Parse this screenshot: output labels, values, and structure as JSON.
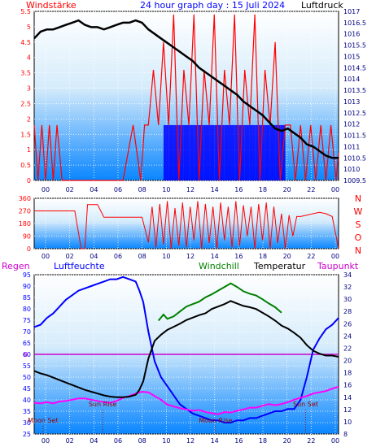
{
  "header": {
    "left_label": "Windstärke",
    "title": "24 hour graph day : 15 Juli 2024",
    "right_label": "Luftdruck"
  },
  "colors": {
    "wind_gust": "#ff0000",
    "wind_avg": "#0000ff",
    "pressure": "#000000",
    "direction": "#ff0000",
    "humidity": "#0000ff",
    "temperature": "#000000",
    "windchill": "#008000",
    "dewpoint": "#ff00ff",
    "rain": "#ff0000",
    "zero_line": "#cc00cc",
    "plot_top": "#ffffff",
    "plot_bottom": "#0a86ff"
  },
  "chart_data": [
    {
      "id": "wind-pressure",
      "type": "line",
      "x_ticks": [
        "00",
        "02",
        "04",
        "06",
        "08",
        "10",
        "12",
        "14",
        "16",
        "18",
        "20",
        "22",
        "00"
      ],
      "y_left_ticks": [
        "0",
        "0.5",
        "1",
        "1.5",
        "2",
        "2.5",
        "3",
        "3.5",
        "4",
        "4.5",
        "5",
        "5.5"
      ],
      "y_left_label": "Windstärke",
      "ylim_left": [
        0,
        5.5
      ],
      "y_right_ticks": [
        "1009.5",
        "1010",
        "1010.5",
        "1011",
        "1011.5",
        "1012",
        "1012.5",
        "1013",
        "1013.5",
        "1014",
        "1014.5",
        "1015",
        "1015.5",
        "1016",
        "1016.5",
        "1017"
      ],
      "y_right_label": "Luftdruck",
      "ylim_right": [
        1009.5,
        1017
      ],
      "series": [
        {
          "name": "Luftdruck",
          "axis": "right",
          "x": [
            0,
            0.5,
            1,
            1.5,
            2,
            2.5,
            3,
            3.5,
            4,
            4.5,
            5,
            5.5,
            6,
            6.5,
            7,
            7.5,
            8,
            8.5,
            9,
            9.5,
            10,
            10.5,
            11,
            11.5,
            12,
            12.5,
            13,
            13.5,
            14,
            14.5,
            15,
            15.5,
            16,
            16.5,
            17,
            17.5,
            18,
            18.5,
            19,
            19.5,
            20,
            20.5,
            21,
            21.5,
            22,
            22.5,
            23,
            23.5,
            24
          ],
          "y": [
            1015.8,
            1016.1,
            1016.2,
            1016.2,
            1016.3,
            1016.4,
            1016.5,
            1016.6,
            1016.4,
            1016.3,
            1016.3,
            1016.2,
            1016.3,
            1016.4,
            1016.5,
            1016.5,
            1016.6,
            1016.5,
            1016.2,
            1016.0,
            1015.8,
            1015.6,
            1015.4,
            1015.2,
            1015.0,
            1014.8,
            1014.5,
            1014.3,
            1014.1,
            1013.9,
            1013.7,
            1013.5,
            1013.3,
            1013.0,
            1012.8,
            1012.6,
            1012.4,
            1012.1,
            1011.8,
            1011.7,
            1011.8,
            1011.6,
            1011.4,
            1011.1,
            1011.0,
            1010.8,
            1010.6,
            1010.5,
            1010.5
          ]
        },
        {
          "name": "Windstärke",
          "axis": "left",
          "x": [
            0,
            0.3,
            0.6,
            0.9,
            1.2,
            1.5,
            1.8,
            2.2,
            4.2,
            4.8,
            5.5,
            6.2,
            7.0,
            7.8,
            8.4,
            8.7,
            9.0,
            9.4,
            9.8,
            10.2,
            10.6,
            11.0,
            11.4,
            11.8,
            12.2,
            12.6,
            13.0,
            13.4,
            13.8,
            14.2,
            14.6,
            15.0,
            15.4,
            15.8,
            16.2,
            16.6,
            17.0,
            17.4,
            17.8,
            18.2,
            18.6,
            19.0,
            19.4,
            19.8,
            20.2,
            20.6,
            21.0,
            21.4,
            21.8,
            22.2,
            22.6,
            23.0,
            23.4,
            23.8,
            24
          ],
          "y": [
            1.8,
            0,
            1.8,
            0,
            1.8,
            0,
            1.8,
            0,
            0,
            0,
            0,
            0,
            0,
            1.8,
            0,
            1.8,
            1.8,
            3.6,
            1.8,
            4.5,
            1.8,
            5.4,
            0,
            3.6,
            1.8,
            5.4,
            0,
            3.6,
            1.8,
            5.4,
            0,
            3.6,
            1.8,
            5.4,
            0,
            3.6,
            1.8,
            5.4,
            0,
            3.6,
            1.8,
            4.5,
            0,
            1.8,
            1.8,
            0,
            1.8,
            0,
            1.8,
            0,
            1.8,
            0,
            1.8,
            0,
            0.9
          ]
        }
      ]
    },
    {
      "id": "wind-direction",
      "type": "line",
      "x_ticks": [
        "00",
        "02",
        "04",
        "06",
        "08",
        "10",
        "12",
        "14",
        "16",
        "18",
        "20",
        "22",
        "00"
      ],
      "y_left_ticks": [
        "0",
        "90",
        "180",
        "270",
        "360"
      ],
      "ylim": [
        0,
        360
      ],
      "compass_labels": [
        "N",
        "W",
        "S",
        "O",
        "N"
      ],
      "series": [
        {
          "name": "Windrichtung",
          "x": [
            0,
            1.0,
            2.0,
            2.5,
            3.0,
            3.2,
            3.7,
            4.0,
            4.2,
            5.0,
            5.5,
            5.8,
            6.0,
            7.0,
            8.0,
            8.5,
            9.0,
            9.3,
            9.6,
            9.9,
            10.2,
            10.5,
            10.8,
            11.1,
            11.4,
            11.7,
            12.0,
            12.3,
            12.6,
            12.9,
            13.2,
            13.5,
            13.8,
            14.1,
            14.4,
            14.7,
            15.0,
            15.3,
            15.6,
            15.9,
            16.2,
            16.5,
            16.8,
            17.1,
            17.4,
            17.7,
            18.0,
            18.3,
            18.6,
            18.9,
            19.2,
            19.5,
            19.8,
            20.1,
            20.4,
            20.7,
            21.0,
            21.5,
            22.0,
            22.5,
            23.0,
            23.5,
            24
          ],
          "y": [
            270,
            270,
            270,
            270,
            270,
            270,
            0,
            0,
            315,
            315,
            225,
            225,
            225,
            225,
            225,
            225,
            45,
            300,
            10,
            320,
            30,
            340,
            0,
            290,
            20,
            330,
            10,
            300,
            60,
            340,
            0,
            320,
            40,
            300,
            0,
            330,
            60,
            300,
            10,
            340,
            20,
            310,
            90,
            300,
            0,
            320,
            60,
            330,
            0,
            300,
            40,
            250,
            0,
            240,
            90,
            230,
            230,
            240,
            250,
            260,
            250,
            230,
            0
          ]
        }
      ]
    },
    {
      "id": "temperature-humidity",
      "type": "line",
      "legend": [
        "Regen",
        "Luftfeuchte",
        "Windchill",
        "Temperatur",
        "Taupunkt"
      ],
      "x_ticks": [
        "00",
        "02",
        "04",
        "06",
        "08",
        "10",
        "12",
        "14",
        "16",
        "18",
        "20",
        "22",
        "00"
      ],
      "y_left_ticks": [
        "25",
        "30",
        "35",
        "40",
        "45",
        "50",
        "55",
        "60",
        "65",
        "70",
        "75",
        "80",
        "85",
        "90",
        "95"
      ],
      "ylim_left": [
        25,
        95
      ],
      "y_right_ticks": [
        "8",
        "10",
        "12",
        "14",
        "16",
        "18",
        "20",
        "22",
        "24",
        "26",
        "28",
        "30",
        "32",
        "34"
      ],
      "ylim_right": [
        8,
        34
      ],
      "rain_axis_label": "0",
      "annotations": [
        {
          "text": "Moon Set",
          "x": 0.7
        },
        {
          "text": "Sun Rise",
          "x": 5.4
        },
        {
          "text": "Moon Rise",
          "x": 14.3
        },
        {
          "text": "Sun Set",
          "x": 21.4
        }
      ],
      "series": [
        {
          "name": "Luftfeuchte",
          "axis": "left",
          "x": [
            0,
            0.5,
            1,
            1.5,
            2,
            2.5,
            3,
            3.5,
            4,
            4.5,
            5,
            5.5,
            6,
            6.5,
            7,
            7.5,
            8,
            8.3,
            8.6,
            9,
            9.5,
            10,
            10.5,
            11,
            11.5,
            12,
            12.5,
            13,
            13.5,
            14,
            14.5,
            15,
            15.5,
            16,
            16.5,
            17,
            17.5,
            18,
            18.5,
            19,
            19.5,
            20,
            20.5,
            21,
            21.5,
            22,
            22.5,
            23,
            23.5,
            24
          ],
          "y": [
            72,
            73,
            76,
            78,
            81,
            84,
            86,
            88,
            89,
            90,
            91,
            92,
            93,
            93,
            94,
            93,
            92,
            88,
            83,
            70,
            57,
            50,
            46,
            42,
            38,
            36,
            34,
            33,
            32,
            31,
            31,
            30,
            30,
            31,
            31,
            32,
            32,
            33,
            34,
            35,
            35,
            36,
            36,
            40,
            50,
            62,
            67,
            71,
            73,
            76
          ]
        },
        {
          "name": "Temperatur",
          "axis": "right",
          "x": [
            0,
            0.5,
            1,
            1.5,
            2,
            2.5,
            3,
            3.5,
            4,
            4.5,
            5,
            5.5,
            6,
            6.5,
            7,
            7.5,
            8,
            8.3,
            8.6,
            9,
            9.5,
            10,
            10.5,
            11,
            11.5,
            12,
            12.5,
            13,
            13.5,
            14,
            14.5,
            15,
            15.5,
            16,
            16.5,
            17,
            17.5,
            18,
            18.5,
            19,
            19.5,
            20,
            20.5,
            21,
            21.5,
            22,
            22.5,
            23,
            23.5,
            24
          ],
          "y": [
            18.3,
            17.9,
            17.6,
            17.2,
            16.8,
            16.4,
            16.0,
            15.6,
            15.2,
            14.9,
            14.6,
            14.3,
            14.1,
            14.0,
            14.0,
            14.1,
            14.4,
            15.2,
            16.6,
            20.3,
            23.2,
            24.2,
            25.0,
            25.5,
            26.0,
            26.6,
            27.0,
            27.4,
            27.7,
            28.4,
            28.8,
            29.2,
            29.7,
            29.3,
            28.9,
            28.7,
            28.4,
            27.8,
            27.2,
            26.5,
            25.7,
            25.2,
            24.5,
            23.7,
            22.5,
            21.6,
            21.1,
            20.8,
            20.8,
            20.6
          ]
        },
        {
          "name": "Windchill",
          "axis": "right",
          "x": [
            9.8,
            10.2,
            10.5,
            11,
            11.5,
            12,
            12.5,
            13,
            13.5,
            14,
            14.5,
            15,
            15.5,
            16,
            16.5,
            17,
            17.5,
            18,
            18.5,
            19,
            19.5
          ],
          "y": [
            26.5,
            27.5,
            26.8,
            27.2,
            28.0,
            28.8,
            29.2,
            29.6,
            30.3,
            30.8,
            31.4,
            32.0,
            32.6,
            32.0,
            31.3,
            30.9,
            30.6,
            30.0,
            29.3,
            28.7,
            27.8
          ]
        },
        {
          "name": "Taupunkt",
          "axis": "right",
          "x": [
            0,
            0.5,
            1,
            1.5,
            2,
            2.5,
            3,
            3.5,
            4,
            4.5,
            5,
            5.5,
            6,
            6.5,
            7,
            7.5,
            8,
            8.5,
            9,
            9.5,
            10,
            10.5,
            11,
            11.5,
            12,
            12.5,
            13,
            13.5,
            14,
            14.5,
            15,
            15.5,
            16,
            16.5,
            17,
            17.5,
            18,
            18.5,
            19,
            19.5,
            20,
            20.5,
            21,
            21.5,
            22,
            22.5,
            23,
            23.5,
            24
          ],
          "y": [
            13.1,
            13.0,
            13.2,
            13.0,
            13.3,
            13.4,
            13.6,
            13.8,
            13.8,
            13.6,
            13.4,
            13.2,
            13.1,
            13.4,
            13.9,
            14.2,
            14.6,
            14.9,
            14.8,
            14.2,
            13.6,
            12.8,
            12.5,
            12.2,
            12.0,
            11.8,
            11.9,
            11.6,
            11.4,
            11.2,
            11.6,
            11.5,
            11.8,
            12.0,
            12.3,
            12.3,
            12.6,
            12.9,
            12.7,
            12.9,
            13.2,
            13.6,
            13.9,
            14.2,
            14.6,
            14.8,
            15.0,
            15.4,
            15.7
          ]
        },
        {
          "name": "Regen",
          "axis": "rain",
          "x": [
            0,
            24
          ],
          "y": [
            0,
            0
          ]
        }
      ]
    }
  ]
}
